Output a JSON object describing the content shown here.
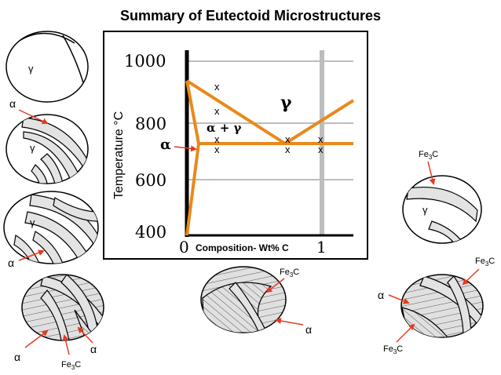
{
  "title": "Summary of Eutectoid Microstructures",
  "colors": {
    "orange": "#e8891b",
    "grid": "#bdbdbd",
    "arrow": "#e53a1f",
    "phase_fill": "#e3e3e3"
  },
  "phase_diagram": {
    "y_axis_label": "Temperature °C",
    "x_axis_label": "Composition- Wt% C",
    "y_ticks": [
      "1000",
      "800",
      "600",
      "400"
    ],
    "x_ticks": [
      "0",
      "1"
    ],
    "region_gamma": "γ",
    "region_alpha_gamma": "α + γ",
    "alpha_label": "α",
    "cross_mark": "x"
  },
  "labels": {
    "alpha": "α",
    "gamma": "γ",
    "fe3c_main": "Fe",
    "fe3c_sub": "3",
    "fe3c_tail": "C"
  }
}
